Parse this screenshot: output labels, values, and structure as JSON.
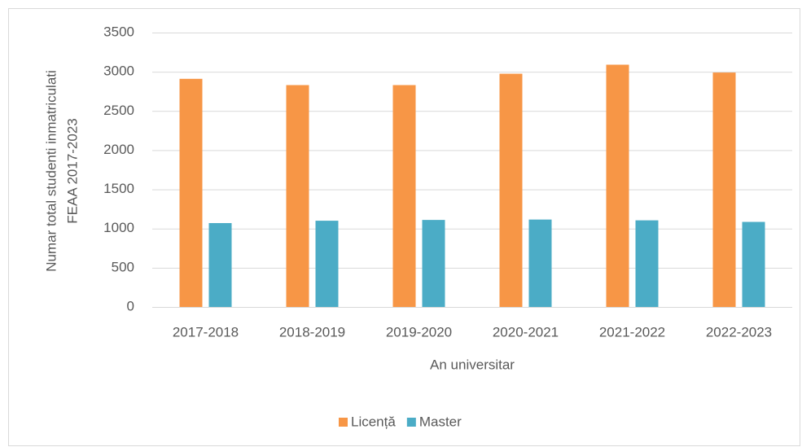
{
  "chart_data": {
    "type": "bar",
    "y_label": [
      "Numar total studenti inmatriculati",
      "FEAA 2017-2023"
    ],
    "x_label": "An universitar",
    "categories": [
      "2017-2018",
      "2018-2019",
      "2019-2020",
      "2020-2021",
      "2021-2022",
      "2022-2023"
    ],
    "series": [
      {
        "name": "Licență",
        "color": "#f79646",
        "values": [
          2910,
          2830,
          2830,
          2975,
          3090,
          2990
        ]
      },
      {
        "name": "Master",
        "color": "#4bacc6",
        "values": [
          1070,
          1100,
          1110,
          1115,
          1105,
          1085
        ]
      }
    ],
    "ylim": [
      0,
      3500
    ],
    "yticks": [
      0,
      500,
      1000,
      1500,
      2000,
      2500,
      3000,
      3500
    ],
    "grid": true,
    "legend": "bottom"
  }
}
